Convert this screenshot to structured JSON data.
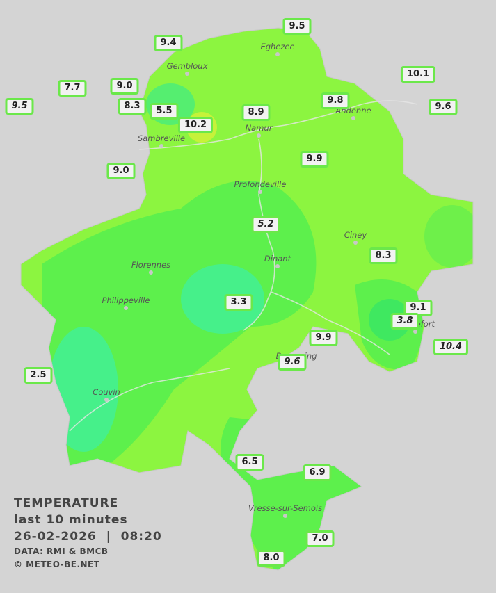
{
  "stations": [
    {
      "label": "9.5"
    },
    {
      "label": "9.4"
    },
    {
      "label": "10.1"
    },
    {
      "label": "7.7"
    },
    {
      "label": "9.0"
    },
    {
      "label": "9.5"
    },
    {
      "label": "8.3"
    },
    {
      "label": "5.5"
    },
    {
      "label": "10.2"
    },
    {
      "label": "8.9"
    },
    {
      "label": "9.8"
    },
    {
      "label": "9.6"
    },
    {
      "label": "9.9"
    },
    {
      "label": "9.0"
    },
    {
      "label": "5.2"
    },
    {
      "label": "8.3"
    },
    {
      "label": "3.3"
    },
    {
      "label": "9.1"
    },
    {
      "label": "3.8"
    },
    {
      "label": "9.9"
    },
    {
      "label": "10.4"
    },
    {
      "label": "9.6"
    },
    {
      "label": "2.5"
    },
    {
      "label": "6.5"
    },
    {
      "label": "6.9"
    },
    {
      "label": "7.0"
    },
    {
      "label": "8.0"
    }
  ],
  "cities": [
    "Eghezee",
    "Gembloux",
    "Andenne",
    "Namur",
    "Sambreville",
    "Profondeville",
    "Ciney",
    "Dinant",
    "Florennes",
    "Philippeville",
    "Rochefort",
    "Beauraing",
    "Couvin",
    "Vresse-sur-Semois"
  ],
  "legend": {
    "title": "TEMPERATURE",
    "period": "last 10 minutes",
    "datetime": "26-02-2026  |  08:20",
    "source": "DATA: RMI & BMCB",
    "copyright": "© METEO-BE.NET"
  }
}
